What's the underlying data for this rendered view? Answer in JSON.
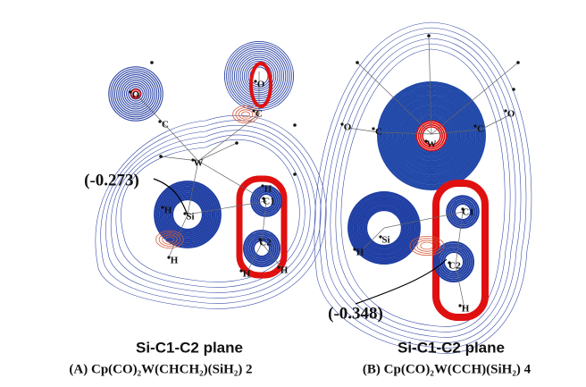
{
  "panels": [
    {
      "annotation": "(-0.273)",
      "plane": "Si-C1-C2 plane",
      "caption": "(A) Cp(CO)₂W(CHCH₂)(SiH₂) 2",
      "atoms": [
        "O",
        "O",
        "C",
        "C",
        "W",
        "Si",
        "H",
        "H",
        "C1",
        "C2",
        "H",
        "H",
        "H"
      ]
    },
    {
      "annotation": "(-0.348)",
      "plane": "Si-C1-C2 plane",
      "caption": "(B) Cp(CO)₂W(CCH)(SiH₂) 4",
      "atoms": [
        "O",
        "O",
        "C",
        "C",
        "W",
        "Si",
        "H",
        "C1",
        "C2",
        "H"
      ]
    }
  ]
}
